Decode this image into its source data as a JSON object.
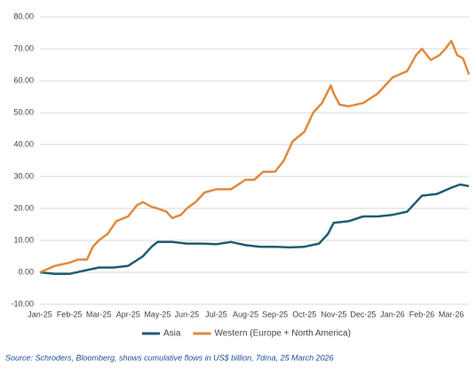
{
  "chart_data": {
    "type": "line",
    "xlim": [
      0,
      14.6
    ],
    "xticks": [
      {
        "value": 0,
        "label": "Jan-25"
      },
      {
        "value": 1,
        "label": "Feb-25"
      },
      {
        "value": 2,
        "label": "Mar-25"
      },
      {
        "value": 3,
        "label": "Apr-25"
      },
      {
        "value": 4,
        "label": "May-25"
      },
      {
        "value": 5,
        "label": "Jun-25"
      },
      {
        "value": 6,
        "label": "Jul-25"
      },
      {
        "value": 7,
        "label": "Aug-25"
      },
      {
        "value": 8,
        "label": "Sep-25"
      },
      {
        "value": 9,
        "label": "Oct-25"
      },
      {
        "value": 10,
        "label": "Nov-25"
      },
      {
        "value": 11,
        "label": "Dec-25"
      },
      {
        "value": 12,
        "label": "Jan-26"
      },
      {
        "value": 13,
        "label": "Feb-26"
      },
      {
        "value": 14,
        "label": "Mar-26"
      }
    ],
    "ylim": [
      -10,
      80
    ],
    "yticks": [
      {
        "value": -10,
        "label": "-10.00"
      },
      {
        "value": 0,
        "label": "0.00"
      },
      {
        "value": 10,
        "label": "10.00"
      },
      {
        "value": 20,
        "label": "20.00"
      },
      {
        "value": 30,
        "label": "30.00"
      },
      {
        "value": 40,
        "label": "40.00"
      },
      {
        "value": 50,
        "label": "50.00"
      },
      {
        "value": 60,
        "label": "60.00"
      },
      {
        "value": 70,
        "label": "70.00"
      },
      {
        "value": 80,
        "label": "80.00"
      }
    ],
    "grid": true,
    "legend": "bottom",
    "series": [
      {
        "name": "Asia",
        "color": "#1f5c74",
        "x": [
          0,
          0.5,
          1,
          1.5,
          2,
          2.5,
          3,
          3.5,
          3.8,
          4,
          4.5,
          5,
          5.5,
          6,
          6.5,
          7,
          7.5,
          8,
          8.5,
          9,
          9.5,
          9.8,
          10,
          10.5,
          11,
          11.5,
          12,
          12.5,
          12.8,
          13,
          13.5,
          14,
          14.3,
          14.6
        ],
        "values": [
          0,
          -0.5,
          -0.5,
          0.5,
          1.5,
          1.5,
          2,
          5,
          8,
          9.5,
          9.5,
          9,
          9,
          8.8,
          9.5,
          8.5,
          8,
          8,
          7.8,
          8,
          9,
          12,
          15.5,
          16,
          17.5,
          17.5,
          18,
          19,
          22,
          24,
          24.5,
          26.5,
          27.5,
          27
        ]
      },
      {
        "name": "Western (Europe + North America)",
        "color": "#e08a3c",
        "x": [
          0,
          0.5,
          1,
          1.3,
          1.6,
          1.8,
          2,
          2.3,
          2.6,
          3,
          3.3,
          3.5,
          3.8,
          4,
          4.3,
          4.5,
          4.8,
          5,
          5.3,
          5.6,
          6,
          6.5,
          7,
          7.3,
          7.6,
          8,
          8.3,
          8.6,
          9,
          9.3,
          9.6,
          9.9,
          10,
          10.2,
          10.5,
          11,
          11.5,
          12,
          12.5,
          12.8,
          13,
          13.3,
          13.6,
          13.8,
          14,
          14.2,
          14.4,
          14.6
        ],
        "values": [
          0,
          2,
          3,
          4,
          4,
          8,
          10,
          12,
          16,
          17.5,
          21,
          22,
          20.5,
          20,
          19,
          17,
          18,
          20,
          22,
          25,
          26,
          26,
          29,
          29,
          31.5,
          31.5,
          35,
          41,
          44,
          50,
          53,
          58.5,
          56,
          52.5,
          52,
          53,
          56,
          61,
          63,
          68,
          70,
          66.5,
          68,
          70,
          72.5,
          68,
          67,
          62
        ]
      }
    ],
    "source": "Source: Schroders, Bloomberg, shows cumulative flows in US$ billion, 7dma, 25 March 2026"
  }
}
